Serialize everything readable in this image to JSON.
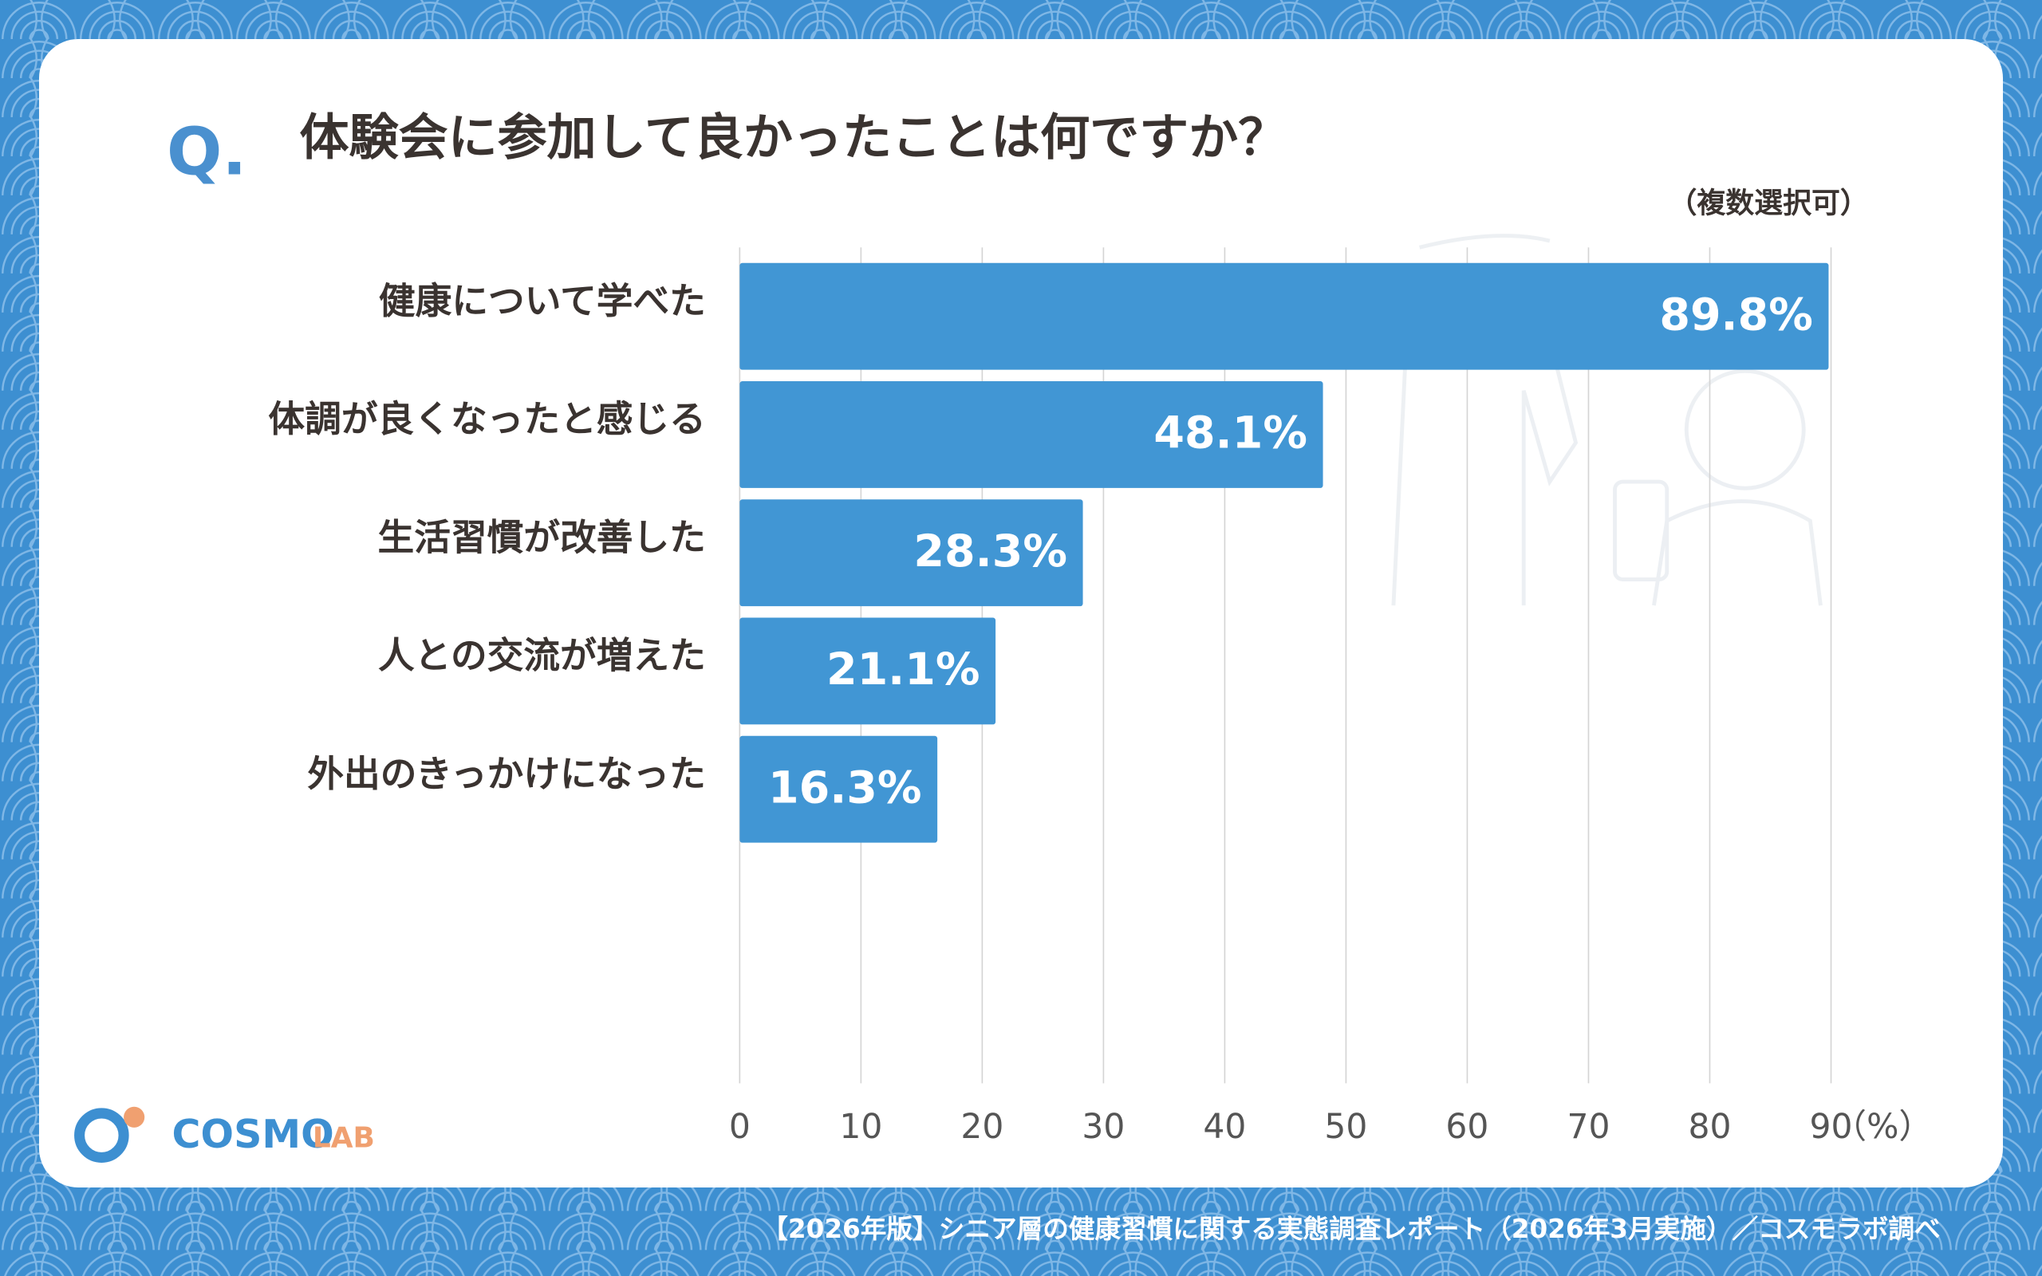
{
  "chart_data": {
    "type": "bar",
    "orientation": "horizontal",
    "title_prefix": "Q.",
    "title": "体験会に参加して良かったことは何ですか？",
    "subtitle": "（複数選択可）",
    "x_unit": "（%）",
    "categories": [
      "健康について学べた",
      "体調が良くなったと感じる",
      "生活習慣が改善した",
      "人との交流が増えた",
      "外出のきっかけになった"
    ],
    "values": [
      89.8,
      48.1,
      28.3,
      21.1,
      16.3
    ],
    "value_labels": [
      "89.8%",
      "48.1%",
      "28.3%",
      "21.1%",
      "16.3%"
    ],
    "color": "#4196d4",
    "xlim": [
      0,
      90
    ],
    "xticks": [
      0,
      10,
      20,
      30,
      40,
      50,
      60,
      70,
      80,
      90
    ],
    "grid": true
  },
  "logo": {
    "main": "COSMO",
    "sub": "LAB"
  },
  "footer": "【2026年版】シニア層の健康習慣に関する実態調査レポート（2026年3月実施）／コスモラボ調べ"
}
